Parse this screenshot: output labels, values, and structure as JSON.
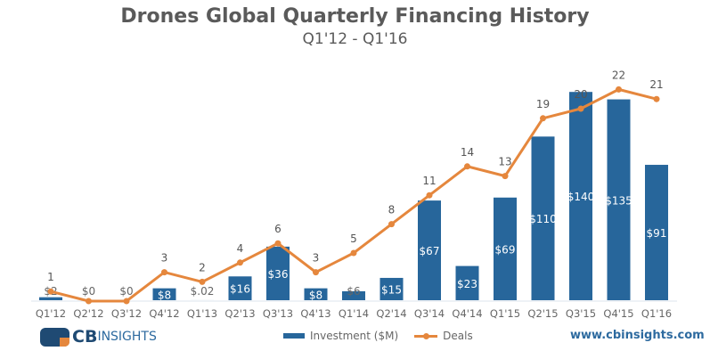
{
  "chart_data": {
    "type": "bar+line",
    "title": "Drones Global Quarterly Financing History",
    "subtitle": "Q1'12 - Q1'16",
    "categories": [
      "Q1'12",
      "Q2'12",
      "Q3'12",
      "Q4'12",
      "Q1'13",
      "Q2'13",
      "Q3'13",
      "Q4'13",
      "Q1'14",
      "Q2'14",
      "Q3'14",
      "Q4'14",
      "Q1'15",
      "Q2'15",
      "Q3'15",
      "Q4'15",
      "Q1'16"
    ],
    "series": [
      {
        "name": "Investment ($M)",
        "type": "bar",
        "color": "#27669b",
        "values": [
          2,
          0,
          0,
          8,
          0.02,
          16,
          36,
          8,
          6,
          15,
          67,
          23,
          69,
          110,
          140,
          135,
          91
        ],
        "labels": [
          "$2",
          "$0",
          "$0",
          "$8",
          "$.02",
          "$16",
          "$36",
          "$8",
          "$6",
          "$15",
          "$67",
          "$23",
          "$69",
          "$110",
          "$140",
          "$135",
          "$91"
        ]
      },
      {
        "name": "Deals",
        "type": "line",
        "color": "#e5873d",
        "values": [
          1,
          0,
          0,
          3,
          2,
          4,
          6,
          3,
          5,
          8,
          11,
          14,
          13,
          19,
          20,
          22,
          21
        ]
      }
    ],
    "grid": false,
    "legend": "bottom"
  },
  "footer": {
    "logo_text": "CBINSIGHTS",
    "url": "www.cbinsights.com"
  }
}
